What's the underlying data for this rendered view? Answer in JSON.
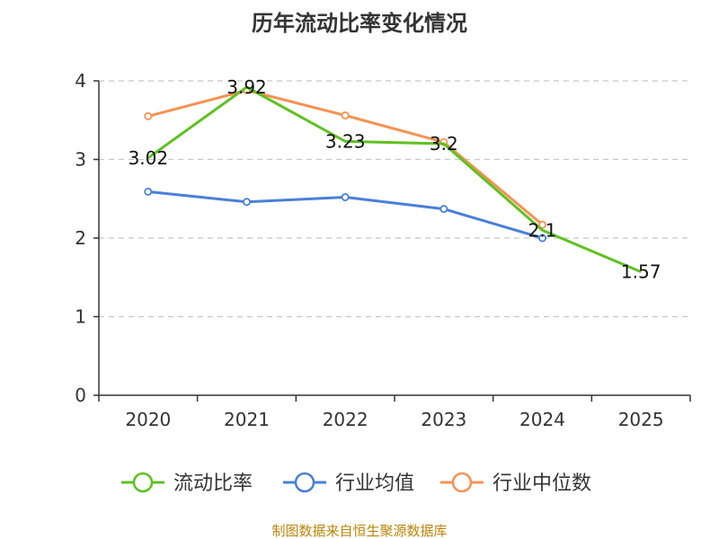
{
  "chart_data": {
    "type": "line",
    "title": "历年流动比率变化情况",
    "categories": [
      "2020",
      "2021",
      "2022",
      "2023",
      "2024",
      "2025"
    ],
    "ylim": [
      0,
      4
    ],
    "yticks": [
      "0",
      "1",
      "2",
      "3",
      "4"
    ],
    "grid": true,
    "legend_position": "bottom",
    "series": [
      {
        "name": "流动比率",
        "color": "#5ec121",
        "values": [
          3.02,
          3.92,
          3.23,
          3.2,
          2.1,
          1.57
        ],
        "labels": [
          "3.02",
          "3.92",
          "3.23",
          "3.2",
          "2.1",
          "1.57"
        ]
      },
      {
        "name": "行业均值",
        "color": "#4a7fd8",
        "values": [
          2.59,
          2.46,
          2.52,
          2.37,
          2.0,
          null
        ]
      },
      {
        "name": "行业中位数",
        "color": "#f59252",
        "values": [
          3.55,
          3.88,
          3.56,
          3.22,
          2.17,
          null
        ]
      }
    ]
  },
  "footer": {
    "source": "制图数据来自恒生聚源数据库"
  }
}
